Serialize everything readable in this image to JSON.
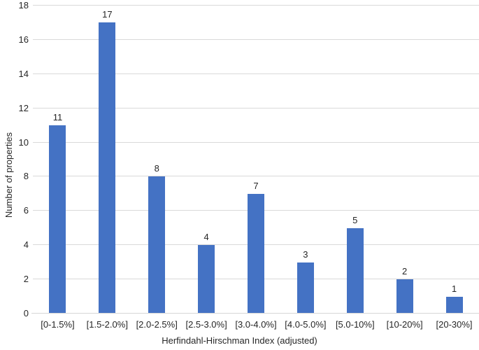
{
  "chart_data": {
    "type": "bar",
    "title": "",
    "xlabel": "Herfindahl-Hirschman Index (adjusted)",
    "ylabel": "Number of properties",
    "categories": [
      "[0-1.5%]",
      "[1.5-2.0%]",
      "[2.0-2.5%]",
      "[2.5-3.0%]",
      "[3.0-4.0%]",
      "[4.0-5.0%]",
      "[5.0-10%]",
      "[10-20%]",
      "[20-30%]"
    ],
    "values": [
      11,
      17,
      8,
      4,
      7,
      3,
      5,
      2,
      1
    ],
    "ylim": [
      0,
      18
    ],
    "ytick_interval": 2,
    "ytick_labels": [
      "0",
      "2",
      "4",
      "6",
      "8",
      "10",
      "12",
      "14",
      "16",
      "18"
    ],
    "data_labels": [
      "11",
      "17",
      "8",
      "4",
      "7",
      "3",
      "5",
      "2",
      "1"
    ],
    "grid": true,
    "legend": "none",
    "bar_color": "#4472C4",
    "gridline_color": "#D9D9D9",
    "axis_line_color": "#D6D6D6",
    "text_color": "#262626"
  }
}
